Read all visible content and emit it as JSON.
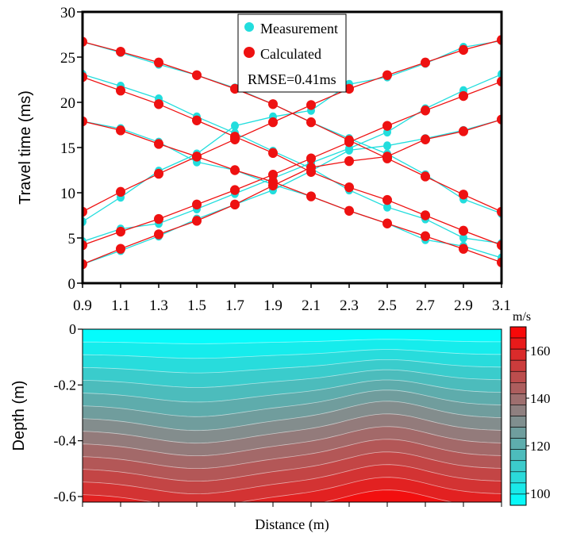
{
  "chart_data": [
    {
      "type": "line",
      "ylabel": "Travel time (ms)",
      "xlim": [
        0.9,
        3.1
      ],
      "ylim": [
        0,
        30
      ],
      "x_ticks": [
        "0.9",
        "1.1",
        "1.3",
        "1.5",
        "1.7",
        "1.9",
        "2.1",
        "2.3",
        "2.5",
        "2.7",
        "2.9",
        "3.1"
      ],
      "y_ticks": [
        "0",
        "5",
        "10",
        "15",
        "20",
        "25",
        "30"
      ],
      "legend": {
        "placement": "top-center",
        "entries": [
          "Measurement",
          "Calculated"
        ],
        "note": "RMSE=0.41ms"
      },
      "x": [
        0.9,
        1.1,
        1.3,
        1.5,
        1.7,
        1.9,
        2.1,
        2.3,
        2.5,
        2.7,
        2.9,
        3.1
      ],
      "series": [
        {
          "group": "Measurement",
          "color": "#22dddd",
          "values": [
            26.7,
            25.5,
            24.2,
            23.0,
            21.6,
            19.8,
            17.8,
            16.0,
            14.3,
            12.0,
            9.3,
            7.7
          ]
        },
        {
          "group": "Calculated",
          "color": "#ee1111",
          "values": [
            26.7,
            25.6,
            24.4,
            23.0,
            21.5,
            19.8,
            17.8,
            15.8,
            13.8,
            11.8,
            9.8,
            7.9
          ]
        },
        {
          "group": "Measurement",
          "color": "#22dddd",
          "values": [
            23.1,
            21.8,
            20.4,
            18.4,
            16.6,
            14.6,
            12.7,
            10.3,
            8.4,
            7.1,
            5.0,
            4.4
          ]
        },
        {
          "group": "Calculated",
          "color": "#ee1111",
          "values": [
            22.8,
            21.3,
            19.8,
            18.0,
            16.2,
            14.4,
            12.3,
            10.6,
            9.2,
            7.5,
            5.8,
            4.2
          ]
        },
        {
          "group": "Measurement",
          "color": "#22dddd",
          "values": [
            17.9,
            17.1,
            15.6,
            13.4,
            12.5,
            10.9,
            9.6,
            8.0,
            6.6,
            4.8,
            4.1,
            2.8
          ]
        },
        {
          "group": "Calculated",
          "color": "#ee1111",
          "values": [
            17.9,
            16.9,
            15.4,
            14.0,
            12.5,
            11.2,
            9.6,
            8.0,
            6.6,
            5.2,
            3.8,
            2.3
          ]
        },
        {
          "group": "Measurement",
          "color": "#22dddd",
          "values": [
            2.1,
            3.6,
            5.2,
            7.1,
            8.7,
            10.3,
            12.4,
            14.7,
            15.2,
            16.0,
            16.9,
            18.1
          ]
        },
        {
          "group": "Calculated",
          "color": "#ee1111",
          "values": [
            2.1,
            3.8,
            5.4,
            6.9,
            8.7,
            10.8,
            12.8,
            13.5,
            14.0,
            15.9,
            16.8,
            18.1
          ]
        },
        {
          "group": "Measurement",
          "color": "#22dddd",
          "values": [
            4.6,
            6.0,
            6.6,
            8.2,
            9.9,
            11.6,
            13.3,
            14.9,
            16.7,
            19.3,
            21.3,
            23.1
          ]
        },
        {
          "group": "Calculated",
          "color": "#ee1111",
          "values": [
            4.2,
            5.7,
            7.1,
            8.7,
            10.3,
            12.0,
            13.8,
            15.6,
            17.4,
            19.1,
            20.7,
            22.3
          ]
        },
        {
          "group": "Measurement",
          "color": "#22dddd",
          "values": [
            6.8,
            9.5,
            12.4,
            14.3,
            17.4,
            18.4,
            19.1,
            22.0,
            22.8,
            24.3,
            26.1,
            26.8
          ]
        },
        {
          "group": "Calculated",
          "color": "#ee1111",
          "values": [
            7.9,
            10.1,
            12.1,
            14.0,
            15.9,
            17.8,
            19.7,
            21.5,
            23.0,
            24.4,
            25.8,
            26.9
          ]
        }
      ]
    },
    {
      "type": "heatmap",
      "xlabel": "Distance (m)",
      "ylabel": "Depth (m)",
      "xlim": [
        0.9,
        3.1
      ],
      "ylim": [
        -0.62,
        0
      ],
      "y_ticks": [
        "0",
        "-0.2",
        "-0.4",
        "-0.6"
      ],
      "colorbar": {
        "unit": "m/s",
        "range": [
          95,
          170
        ],
        "ticks": [
          "160",
          "140",
          "120",
          "100"
        ],
        "levels": 16,
        "color_low": "#00ffff",
        "color_mid": "#888888",
        "color_high": "#ff0000"
      },
      "velocity_model": {
        "base_velocity_m_s": 96,
        "gradient_m_s_per_m": 110,
        "contour_step_m_s": 5,
        "note": "velocity increases with depth; contours bulge upward near x=1.5 and downward near x=2.5"
      }
    }
  ]
}
